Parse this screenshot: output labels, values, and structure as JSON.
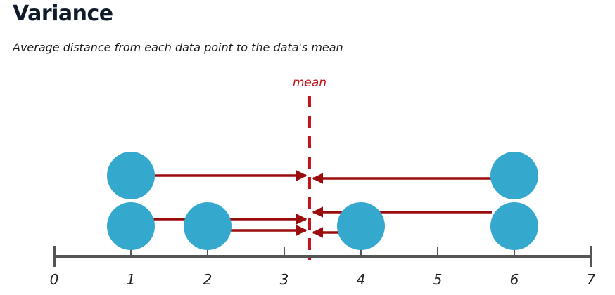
{
  "title": "Variance",
  "subtitle": "Average distance from each data point to the data's mean",
  "colors": {
    "point": "#35a8cd",
    "mean": "#c2121a",
    "arrow": "#9b0d0d",
    "axis": "#555555"
  },
  "axis": {
    "min": 0,
    "max": 7,
    "ticks": [
      "0",
      "1",
      "2",
      "3",
      "4",
      "5",
      "6",
      "7"
    ]
  },
  "mean": {
    "label": "mean",
    "value": 3.33
  },
  "points": [
    {
      "value": 1,
      "stack": 2
    },
    {
      "value": 1,
      "stack": 1
    },
    {
      "value": 2,
      "stack": 1
    },
    {
      "value": 4,
      "stack": 1
    },
    {
      "value": 6,
      "stack": 2
    },
    {
      "value": 6,
      "stack": 1
    }
  ]
}
